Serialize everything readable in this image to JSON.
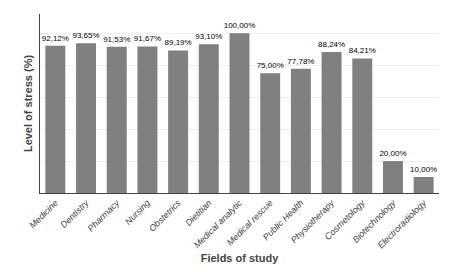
{
  "chart_data": {
    "type": "bar",
    "categories": [
      "Medicine",
      "Dentistry",
      "Pharmacy",
      "Nursing",
      "Obstetrics",
      "Dietitian",
      "Medical analytic",
      "Medical rescue",
      "Public Health",
      "Physiotherapy",
      "Cosmetology",
      "Biotechnology",
      "Electroradiology"
    ],
    "values": [
      92.12,
      93.65,
      91.53,
      91.67,
      89.19,
      93.1,
      100.0,
      75.0,
      77.78,
      88.24,
      84.21,
      20.0,
      10.0
    ],
    "value_labels": [
      "92,12%",
      "93,65%",
      "91,53%",
      "91,67%",
      "89,19%",
      "93,10%",
      "100,00%",
      "75,00%",
      "77,78%",
      "88,24%",
      "84,21%",
      "20,00%",
      "10,00%"
    ],
    "data_labels": true,
    "color": "#808080",
    "xlabel": "Fields of study",
    "ylabel": "Level of stress (%)",
    "ylim": [
      0,
      112
    ],
    "yticks": [
      0,
      20,
      40,
      60,
      80,
      100
    ],
    "tick_labels": "x",
    "grid": true
  }
}
